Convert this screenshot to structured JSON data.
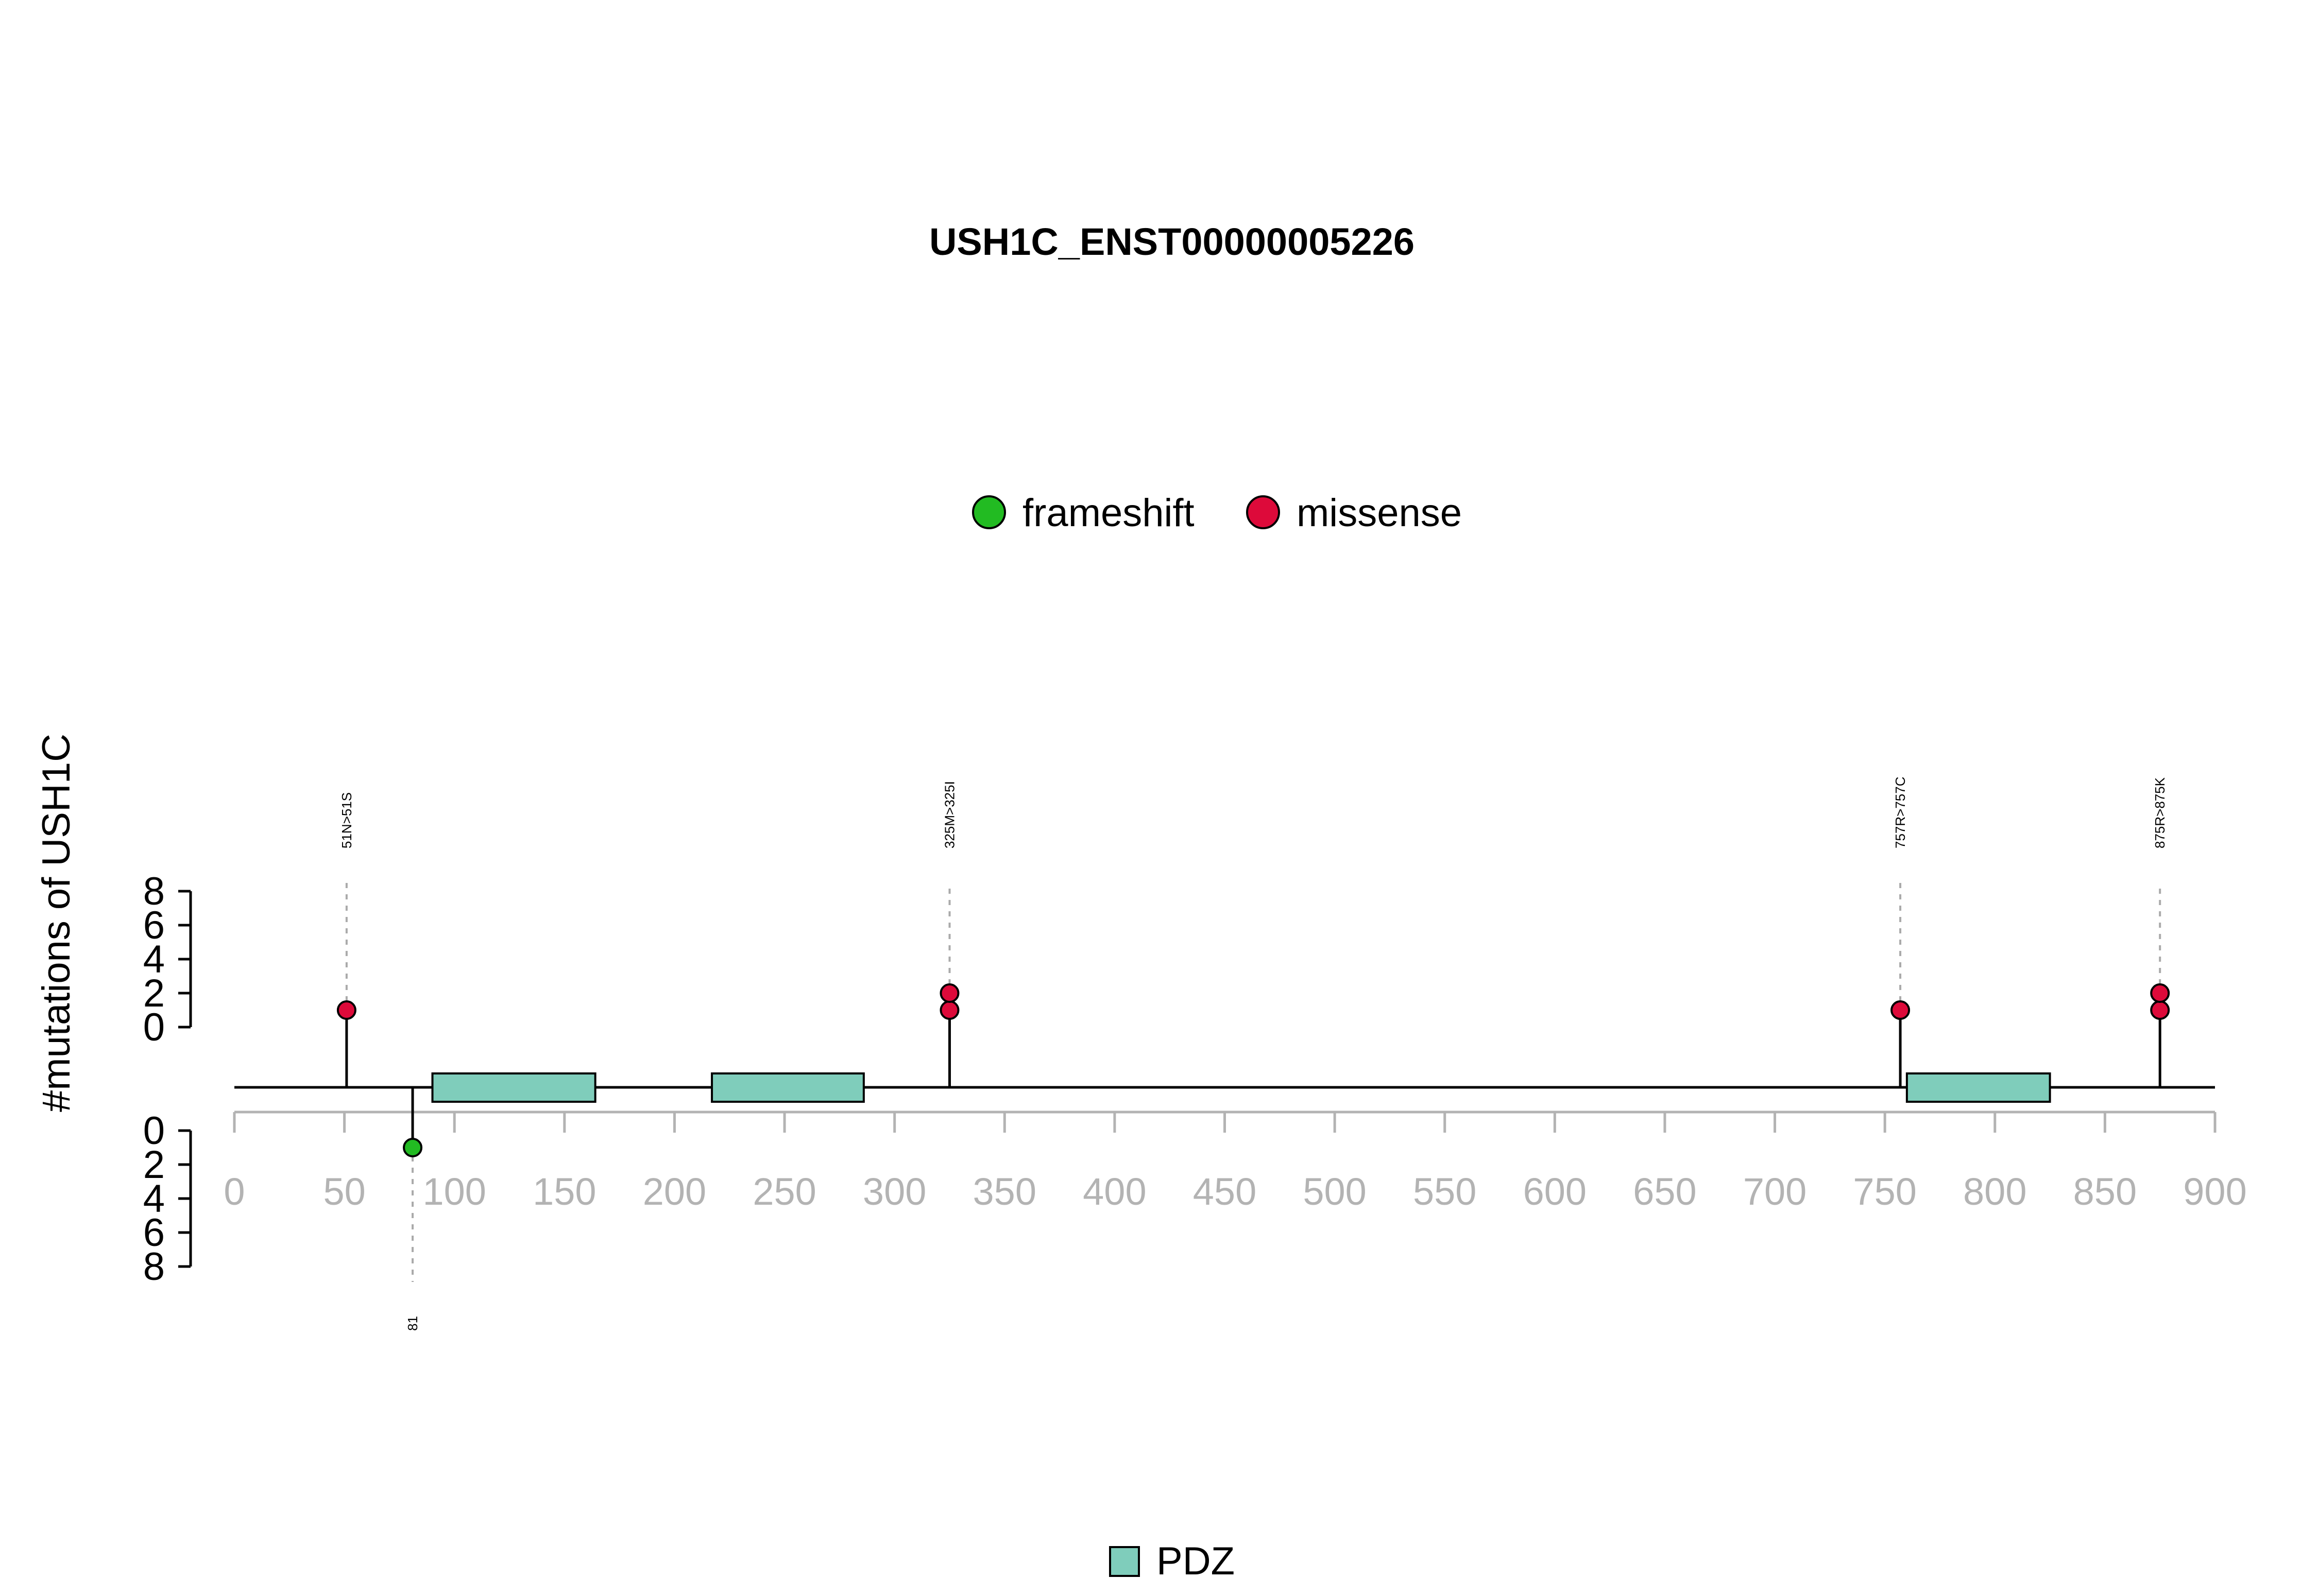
{
  "chart_data": {
    "type": "lollipop",
    "title": "USH1C_ENST00000005226",
    "ylabel": "#mutations of USH1C",
    "xlim": [
      0,
      900
    ],
    "x_ticks": [
      0,
      50,
      100,
      150,
      200,
      250,
      300,
      350,
      400,
      450,
      500,
      550,
      600,
      650,
      700,
      750,
      800,
      850,
      900
    ],
    "y_ticks": [
      0,
      2,
      4,
      6,
      8
    ],
    "ylim": [
      0,
      8
    ],
    "mutation_types": [
      {
        "name": "frameshift",
        "color": "#22bb22"
      },
      {
        "name": "missense",
        "color": "#dd0a3a"
      }
    ],
    "upper_mutations": [
      {
        "position": 51,
        "count": 1,
        "type": "missense",
        "label": "51N>51S"
      },
      {
        "position": 325,
        "count": 2,
        "type": "missense",
        "label": "325M>325I"
      },
      {
        "position": 757,
        "count": 1,
        "type": "missense",
        "label": "757R>757C"
      },
      {
        "position": 875,
        "count": 2,
        "type": "missense",
        "label": "875R>875K"
      }
    ],
    "lower_mutations": [
      {
        "position": 81,
        "count": 1,
        "type": "frameshift",
        "label": "81"
      }
    ],
    "domains": [
      {
        "name": "PDZ",
        "start": 90,
        "end": 164
      },
      {
        "name": "PDZ",
        "start": 217,
        "end": 286
      },
      {
        "name": "PDZ",
        "start": 760,
        "end": 825
      }
    ],
    "domain_legend": [
      {
        "name": "PDZ",
        "color": "#7fcdbb"
      }
    ]
  }
}
